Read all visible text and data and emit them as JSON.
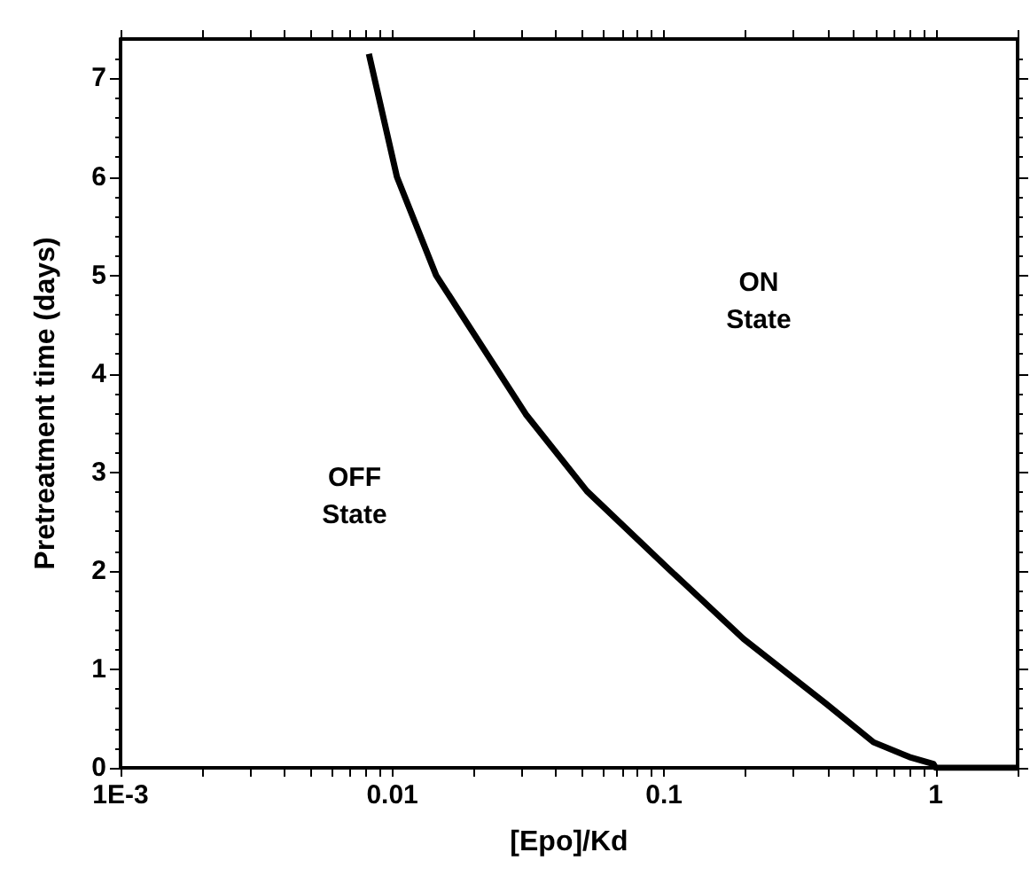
{
  "chart_data": {
    "type": "line",
    "xlabel": "[Epo]/Kd",
    "ylabel": "Pretreatment time (days)",
    "x": [
      0.0082,
      0.0104,
      0.0145,
      0.031,
      0.052,
      0.103,
      0.196,
      0.395,
      0.59,
      0.8,
      0.98,
      1.0,
      2.0
    ],
    "series": [
      {
        "color": "#000000",
        "values": [
          7.25,
          6.0,
          5.0,
          3.59,
          2.81,
          2.03,
          1.31,
          0.65,
          0.26,
          0.11,
          0.04,
          0.0,
          0.0
        ]
      }
    ],
    "log": "x",
    "xlim": [
      0.001,
      2
    ],
    "xticks": [
      {
        "value": 0.001,
        "label": "1E-3"
      },
      0.01,
      0.1,
      1
    ],
    "ylim": [
      0,
      7.4
    ],
    "yticks": [
      0,
      1,
      2,
      3,
      4,
      5,
      6,
      7
    ],
    "annotations": [
      "OFF\nState",
      "ON\nState"
    ],
    "grid": false,
    "marker": "none",
    "line_style": "solid"
  }
}
